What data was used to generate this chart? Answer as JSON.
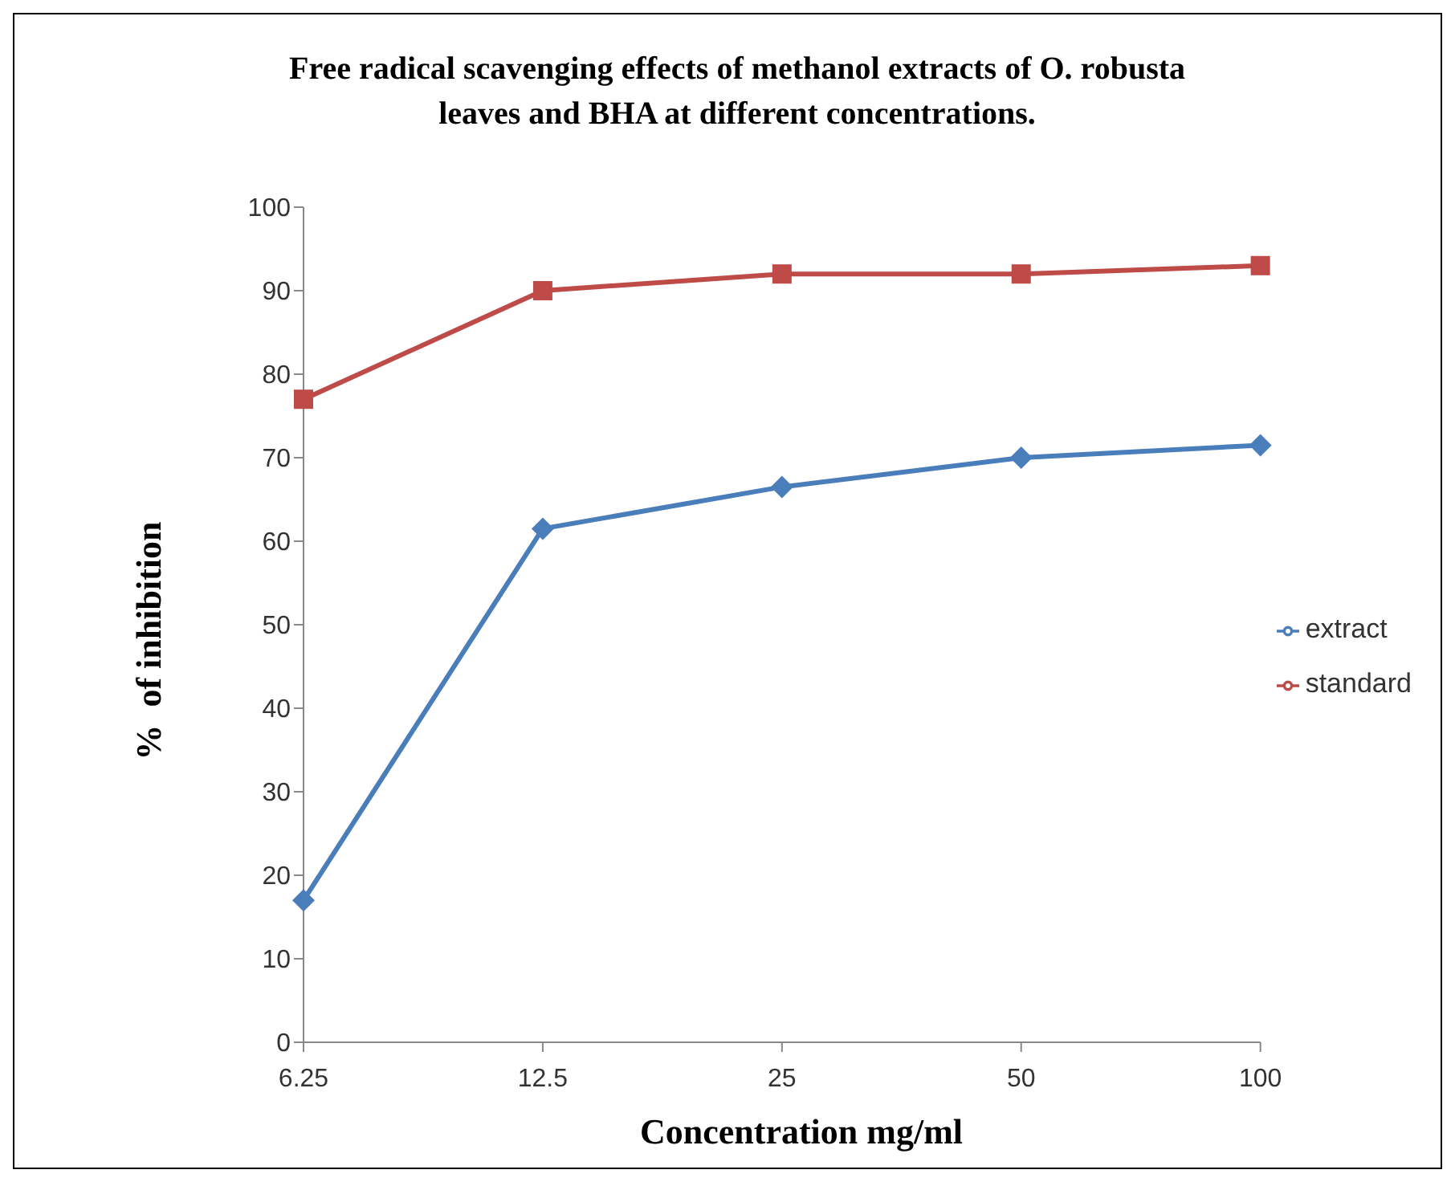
{
  "chart_data": {
    "type": "line",
    "title": "Free radical scavenging effects of methanol extracts of O. robusta leaves and BHA at different concentrations.",
    "xlabel": "Concentration mg/ml",
    "ylabel": "%  of inhibition",
    "categories": [
      "6.25",
      "12.5",
      "25",
      "50",
      "100"
    ],
    "series": [
      {
        "name": "extract",
        "color": "#4a7ebb",
        "marker": "diamond",
        "values": [
          17,
          61.5,
          66.5,
          70,
          71.5
        ]
      },
      {
        "name": "standard",
        "color": "#be4b48",
        "marker": "square",
        "values": [
          77,
          90,
          92,
          92,
          93
        ]
      }
    ],
    "ylim": [
      0,
      100
    ],
    "yticks": [
      0,
      10,
      20,
      30,
      40,
      50,
      60,
      70,
      80,
      90,
      100
    ],
    "grid": false,
    "legend": "right",
    "line_style": "solid"
  }
}
